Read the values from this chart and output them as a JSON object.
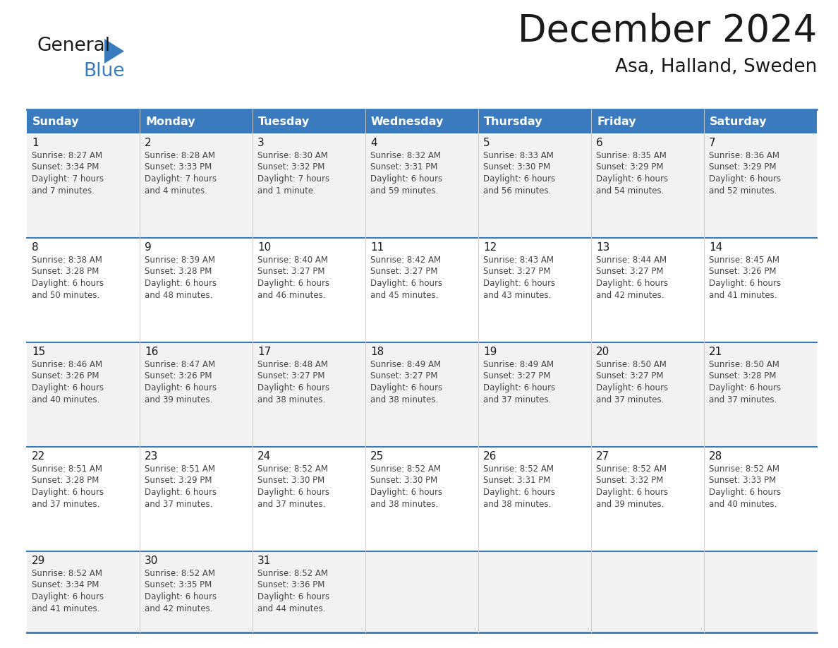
{
  "title": "December 2024",
  "subtitle": "Asa, Halland, Sweden",
  "header_bg_color": "#3a7bbf",
  "header_text_color": "#ffffff",
  "cell_bg_even": "#f2f2f2",
  "cell_bg_odd": "#ffffff",
  "separator_color": "#3a7bbf",
  "days_of_week": [
    "Sunday",
    "Monday",
    "Tuesday",
    "Wednesday",
    "Thursday",
    "Friday",
    "Saturday"
  ],
  "weeks": [
    [
      {
        "day": 1,
        "sunrise": "8:27 AM",
        "sunset": "3:34 PM",
        "daylight": "7 hours",
        "daylight2": "and 7 minutes."
      },
      {
        "day": 2,
        "sunrise": "8:28 AM",
        "sunset": "3:33 PM",
        "daylight": "7 hours",
        "daylight2": "and 4 minutes."
      },
      {
        "day": 3,
        "sunrise": "8:30 AM",
        "sunset": "3:32 PM",
        "daylight": "7 hours",
        "daylight2": "and 1 minute."
      },
      {
        "day": 4,
        "sunrise": "8:32 AM",
        "sunset": "3:31 PM",
        "daylight": "6 hours",
        "daylight2": "and 59 minutes."
      },
      {
        "day": 5,
        "sunrise": "8:33 AM",
        "sunset": "3:30 PM",
        "daylight": "6 hours",
        "daylight2": "and 56 minutes."
      },
      {
        "day": 6,
        "sunrise": "8:35 AM",
        "sunset": "3:29 PM",
        "daylight": "6 hours",
        "daylight2": "and 54 minutes."
      },
      {
        "day": 7,
        "sunrise": "8:36 AM",
        "sunset": "3:29 PM",
        "daylight": "6 hours",
        "daylight2": "and 52 minutes."
      }
    ],
    [
      {
        "day": 8,
        "sunrise": "8:38 AM",
        "sunset": "3:28 PM",
        "daylight": "6 hours",
        "daylight2": "and 50 minutes."
      },
      {
        "day": 9,
        "sunrise": "8:39 AM",
        "sunset": "3:28 PM",
        "daylight": "6 hours",
        "daylight2": "and 48 minutes."
      },
      {
        "day": 10,
        "sunrise": "8:40 AM",
        "sunset": "3:27 PM",
        "daylight": "6 hours",
        "daylight2": "and 46 minutes."
      },
      {
        "day": 11,
        "sunrise": "8:42 AM",
        "sunset": "3:27 PM",
        "daylight": "6 hours",
        "daylight2": "and 45 minutes."
      },
      {
        "day": 12,
        "sunrise": "8:43 AM",
        "sunset": "3:27 PM",
        "daylight": "6 hours",
        "daylight2": "and 43 minutes."
      },
      {
        "day": 13,
        "sunrise": "8:44 AM",
        "sunset": "3:27 PM",
        "daylight": "6 hours",
        "daylight2": "and 42 minutes."
      },
      {
        "day": 14,
        "sunrise": "8:45 AM",
        "sunset": "3:26 PM",
        "daylight": "6 hours",
        "daylight2": "and 41 minutes."
      }
    ],
    [
      {
        "day": 15,
        "sunrise": "8:46 AM",
        "sunset": "3:26 PM",
        "daylight": "6 hours",
        "daylight2": "and 40 minutes."
      },
      {
        "day": 16,
        "sunrise": "8:47 AM",
        "sunset": "3:26 PM",
        "daylight": "6 hours",
        "daylight2": "and 39 minutes."
      },
      {
        "day": 17,
        "sunrise": "8:48 AM",
        "sunset": "3:27 PM",
        "daylight": "6 hours",
        "daylight2": "and 38 minutes."
      },
      {
        "day": 18,
        "sunrise": "8:49 AM",
        "sunset": "3:27 PM",
        "daylight": "6 hours",
        "daylight2": "and 38 minutes."
      },
      {
        "day": 19,
        "sunrise": "8:49 AM",
        "sunset": "3:27 PM",
        "daylight": "6 hours",
        "daylight2": "and 37 minutes."
      },
      {
        "day": 20,
        "sunrise": "8:50 AM",
        "sunset": "3:27 PM",
        "daylight": "6 hours",
        "daylight2": "and 37 minutes."
      },
      {
        "day": 21,
        "sunrise": "8:50 AM",
        "sunset": "3:28 PM",
        "daylight": "6 hours",
        "daylight2": "and 37 minutes."
      }
    ],
    [
      {
        "day": 22,
        "sunrise": "8:51 AM",
        "sunset": "3:28 PM",
        "daylight": "6 hours",
        "daylight2": "and 37 minutes."
      },
      {
        "day": 23,
        "sunrise": "8:51 AM",
        "sunset": "3:29 PM",
        "daylight": "6 hours",
        "daylight2": "and 37 minutes."
      },
      {
        "day": 24,
        "sunrise": "8:52 AM",
        "sunset": "3:30 PM",
        "daylight": "6 hours",
        "daylight2": "and 37 minutes."
      },
      {
        "day": 25,
        "sunrise": "8:52 AM",
        "sunset": "3:30 PM",
        "daylight": "6 hours",
        "daylight2": "and 38 minutes."
      },
      {
        "day": 26,
        "sunrise": "8:52 AM",
        "sunset": "3:31 PM",
        "daylight": "6 hours",
        "daylight2": "and 38 minutes."
      },
      {
        "day": 27,
        "sunrise": "8:52 AM",
        "sunset": "3:32 PM",
        "daylight": "6 hours",
        "daylight2": "and 39 minutes."
      },
      {
        "day": 28,
        "sunrise": "8:52 AM",
        "sunset": "3:33 PM",
        "daylight": "6 hours",
        "daylight2": "and 40 minutes."
      }
    ],
    [
      {
        "day": 29,
        "sunrise": "8:52 AM",
        "sunset": "3:34 PM",
        "daylight": "6 hours",
        "daylight2": "and 41 minutes."
      },
      {
        "day": 30,
        "sunrise": "8:52 AM",
        "sunset": "3:35 PM",
        "daylight": "6 hours",
        "daylight2": "and 42 minutes."
      },
      {
        "day": 31,
        "sunrise": "8:52 AM",
        "sunset": "3:36 PM",
        "daylight": "6 hours",
        "daylight2": "and 44 minutes."
      },
      null,
      null,
      null,
      null
    ]
  ],
  "background_color": "#ffffff",
  "text_color_dark": "#1a1a1a",
  "text_color_info": "#444444",
  "cell_text_fontsize": 8.5,
  "day_num_fontsize": 11,
  "header_fontsize": 11.5,
  "title_fontsize": 38,
  "subtitle_fontsize": 19
}
